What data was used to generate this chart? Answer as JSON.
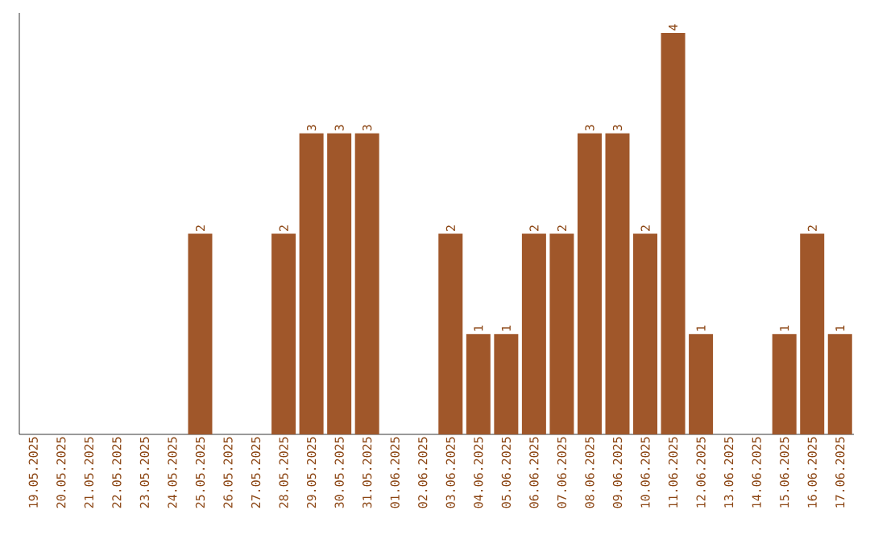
{
  "chart_data": {
    "type": "bar",
    "categories": [
      "19.05.2025",
      "20.05.2025",
      "21.05.2025",
      "22.05.2025",
      "23.05.2025",
      "24.05.2025",
      "25.05.2025",
      "26.05.2025",
      "27.05.2025",
      "28.05.2025",
      "29.05.2025",
      "30.05.2025",
      "31.05.2025",
      "01.06.2025",
      "02.06.2025",
      "03.06.2025",
      "04.06.2025",
      "05.06.2025",
      "06.06.2025",
      "07.06.2025",
      "08.06.2025",
      "09.06.2025",
      "10.06.2025",
      "11.06.2025",
      "12.06.2025",
      "13.06.2025",
      "14.06.2025",
      "15.06.2025",
      "16.06.2025",
      "17.06.2025"
    ],
    "values": [
      0,
      0,
      0,
      0,
      0,
      0,
      2,
      0,
      0,
      2,
      3,
      3,
      3,
      0,
      0,
      2,
      1,
      1,
      2,
      2,
      3,
      3,
      2,
      4,
      1,
      0,
      0,
      1,
      2,
      1
    ],
    "value_labels": [
      null,
      null,
      null,
      null,
      null,
      null,
      "2",
      null,
      null,
      "2",
      "3",
      "3",
      "3",
      null,
      null,
      "2",
      "1",
      "1",
      "2",
      "2",
      "3",
      "3",
      "2",
      "4",
      "1",
      null,
      null,
      "1",
      "2",
      "1"
    ],
    "color": "#a0572a",
    "ylim": [
      0,
      4.2
    ],
    "tick_labels": "x",
    "grid": false
  }
}
